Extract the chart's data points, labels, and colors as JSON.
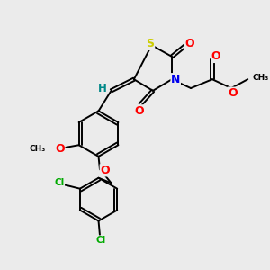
{
  "bg_color": "#ebebeb",
  "bond_color": "#000000",
  "bond_width": 1.4,
  "atom_colors": {
    "S": "#cccc00",
    "N": "#0000ee",
    "O": "#ff0000",
    "Cl": "#00aa00",
    "H": "#008888",
    "C": "#000000"
  },
  "font_size": 7.5,
  "fig_size": [
    3.0,
    3.0
  ],
  "dpi": 100
}
